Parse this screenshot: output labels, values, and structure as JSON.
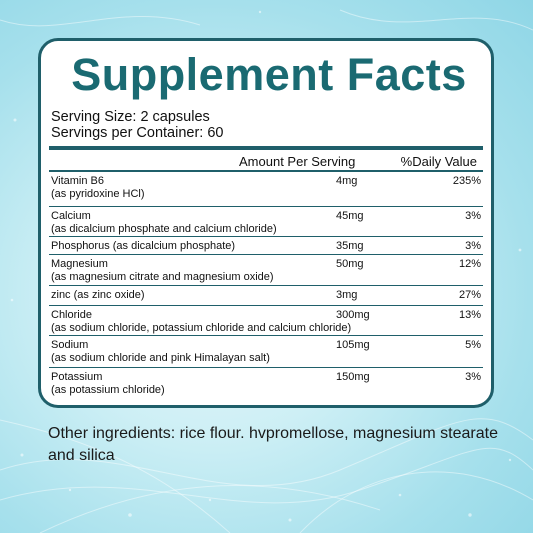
{
  "title": "Supplement Facts",
  "serving_size": "Serving Size: 2 capsules",
  "servings_per_container": "Servings per Container: 60",
  "columns": {
    "amount": "Amount Per Serving",
    "daily_value": "%Daily Value"
  },
  "nutrients": [
    {
      "name": "Vitamin B6",
      "detail": "(as pyridoxine HCl)",
      "amount": "4mg",
      "dv": "235%"
    },
    {
      "name": "Calcium",
      "detail": "(as dicalcium phosphate and calcium chloride)",
      "amount": "45mg",
      "dv": "3%"
    },
    {
      "name": "Phosphorus (as dicalcium phosphate)",
      "detail": "",
      "amount": "35mg",
      "dv": "3%"
    },
    {
      "name": "Magnesium",
      "detail": "(as magnesium citrate and magnesium oxide)",
      "amount": "50mg",
      "dv": "12%"
    },
    {
      "name": "zinc (as zinc oxide)",
      "detail": "",
      "amount": "3mg",
      "dv": "27%"
    },
    {
      "name": "Chloride",
      "detail": "(as sodium chloride, potassium chloride and calcium chloride)",
      "amount": "300mg",
      "dv": "13%"
    },
    {
      "name": "Sodium",
      "detail": "(as sodium chloride and pink Himalayan salt)",
      "amount": "105mg",
      "dv": "5%"
    },
    {
      "name": "Potassium",
      "detail": "(as potassium chloride)",
      "amount": "150mg",
      "dv": "3%"
    }
  ],
  "other_ingredients": "Other ingredients: rice flour. hvpromellose, magnesium stearate and silica",
  "colors": {
    "accent": "#1a6a72",
    "border": "#1f5f6a",
    "background": "#a6e0ec"
  }
}
